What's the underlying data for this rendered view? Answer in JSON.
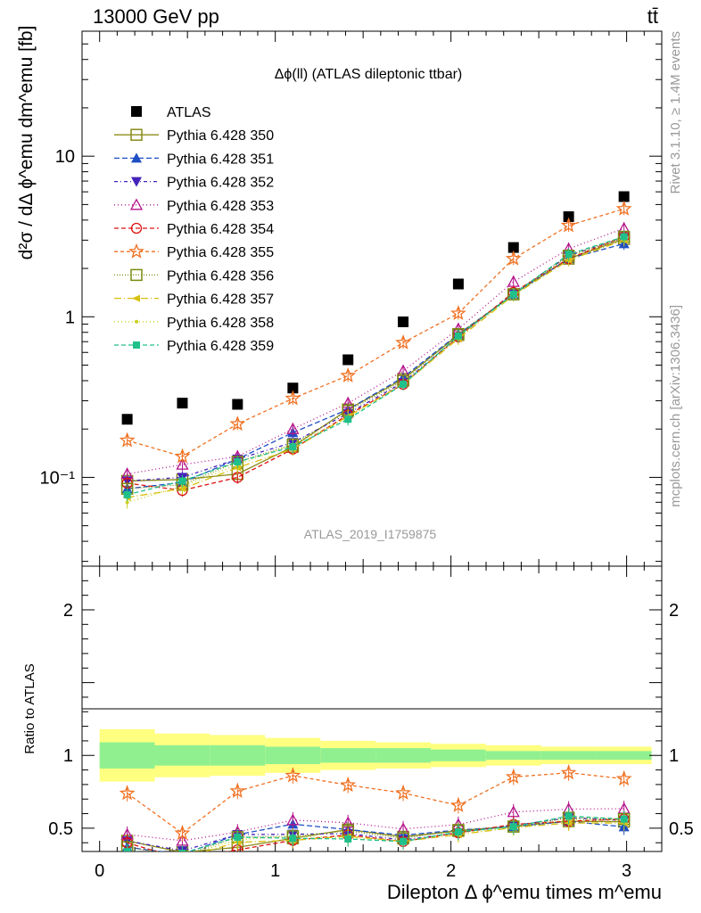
{
  "header": {
    "left": "13000 GeV pp",
    "right": "tt̄"
  },
  "side": {
    "rivet": "Rivet 3.1.10, ≥ 1.4M events",
    "mcplots": "mcplots.cern.ch [arXiv:1306.3436]"
  },
  "chart_data": [
    {
      "type": "scatter",
      "title": "Δϕ(ll) (ATLAS dileptonic ttbar)",
      "watermark": "ATLAS_2019_I1759875",
      "ylabel": "d²σ / dΔ ϕ^emu dm^emu [fb]",
      "yscale": "log",
      "ylim": [
        0.028,
        60
      ],
      "xlim": [
        -0.1,
        3.2
      ],
      "ytick_labels": [
        "10⁻¹",
        "1",
        "10"
      ],
      "x": [
        0.157,
        0.471,
        0.785,
        1.1,
        1.414,
        1.728,
        2.042,
        2.356,
        2.67,
        2.985
      ],
      "series": [
        {
          "name": "ATLAS",
          "color": "#000000",
          "values": [
            0.23,
            0.29,
            0.285,
            0.36,
            0.54,
            0.93,
            1.6,
            2.7,
            4.2,
            5.6
          ]
        },
        {
          "name": "Pythia 6.428 350",
          "color": "#8b8b1a",
          "values": [
            0.095,
            0.097,
            0.105,
            0.155,
            0.265,
            0.41,
            0.77,
            1.38,
            2.3,
            3.05
          ]
        },
        {
          "name": "Pythia 6.428 351",
          "color": "#1f4fc4",
          "values": [
            0.085,
            0.093,
            0.13,
            0.19,
            0.265,
            0.42,
            0.78,
            1.38,
            2.3,
            2.85
          ]
        },
        {
          "name": "Pythia 6.428 352",
          "color": "#4422bb",
          "values": [
            0.095,
            0.1,
            0.13,
            0.165,
            0.25,
            0.39,
            0.75,
            1.4,
            2.4,
            3.1
          ]
        },
        {
          "name": "Pythia 6.428 353",
          "color": "#b4148c",
          "values": [
            0.105,
            0.12,
            0.135,
            0.2,
            0.29,
            0.46,
            0.84,
            1.65,
            2.65,
            3.55
          ]
        },
        {
          "name": "Pythia 6.428 354",
          "color": "#dd1111",
          "values": [
            0.092,
            0.083,
            0.1,
            0.15,
            0.245,
            0.38,
            0.75,
            1.42,
            2.3,
            3.15
          ]
        },
        {
          "name": "Pythia 6.428 355",
          "color": "#f07020",
          "values": [
            0.17,
            0.135,
            0.215,
            0.31,
            0.43,
            0.69,
            1.05,
            2.3,
            3.7,
            4.7
          ]
        },
        {
          "name": "Pythia 6.428 356",
          "color": "#7a8a10",
          "values": [
            0.085,
            0.09,
            0.125,
            0.16,
            0.26,
            0.4,
            0.78,
            1.38,
            2.4,
            3.15
          ]
        },
        {
          "name": "Pythia 6.428 357",
          "color": "#d8c010",
          "values": [
            0.075,
            0.085,
            0.115,
            0.15,
            0.24,
            0.38,
            0.73,
            1.36,
            2.25,
            3.0
          ]
        },
        {
          "name": "Pythia 6.428 358",
          "color": "#c8d020",
          "values": [
            0.07,
            0.088,
            0.12,
            0.16,
            0.235,
            0.385,
            0.75,
            1.36,
            2.35,
            3.1
          ]
        },
        {
          "name": "Pythia 6.428 359",
          "color": "#20c08a",
          "values": [
            0.078,
            0.095,
            0.125,
            0.155,
            0.23,
            0.38,
            0.76,
            1.38,
            2.45,
            3.15
          ]
        }
      ]
    },
    {
      "type": "line",
      "ylabel": "Ratio to ATLAS",
      "xlabel": "Dilepton Δ ϕ^emu times m^emu",
      "ylim": [
        0.34,
        2.3
      ],
      "xlim": [
        -0.1,
        3.2
      ],
      "xtick_labels": [
        "0",
        "1",
        "2",
        "3"
      ],
      "ytick_labels": [
        "0.5",
        "1",
        "2"
      ],
      "band_edges": [
        0.0,
        0.314,
        0.628,
        0.942,
        1.257,
        1.571,
        1.885,
        2.199,
        2.513,
        2.827,
        3.142
      ],
      "band_inner": [
        [
          0.91,
          1.09
        ],
        [
          0.93,
          1.07
        ],
        [
          0.93,
          1.07
        ],
        [
          0.94,
          1.06
        ],
        [
          0.95,
          1.05
        ],
        [
          0.95,
          1.05
        ],
        [
          0.96,
          1.04
        ],
        [
          0.97,
          1.03
        ],
        [
          0.97,
          1.03
        ],
        [
          0.97,
          1.03
        ]
      ],
      "band_outer": [
        [
          0.82,
          1.18
        ],
        [
          0.85,
          1.15
        ],
        [
          0.86,
          1.14
        ],
        [
          0.88,
          1.12
        ],
        [
          0.9,
          1.1
        ],
        [
          0.91,
          1.09
        ],
        [
          0.92,
          1.08
        ],
        [
          0.93,
          1.07
        ],
        [
          0.94,
          1.06
        ],
        [
          0.94,
          1.06
        ]
      ]
    }
  ]
}
